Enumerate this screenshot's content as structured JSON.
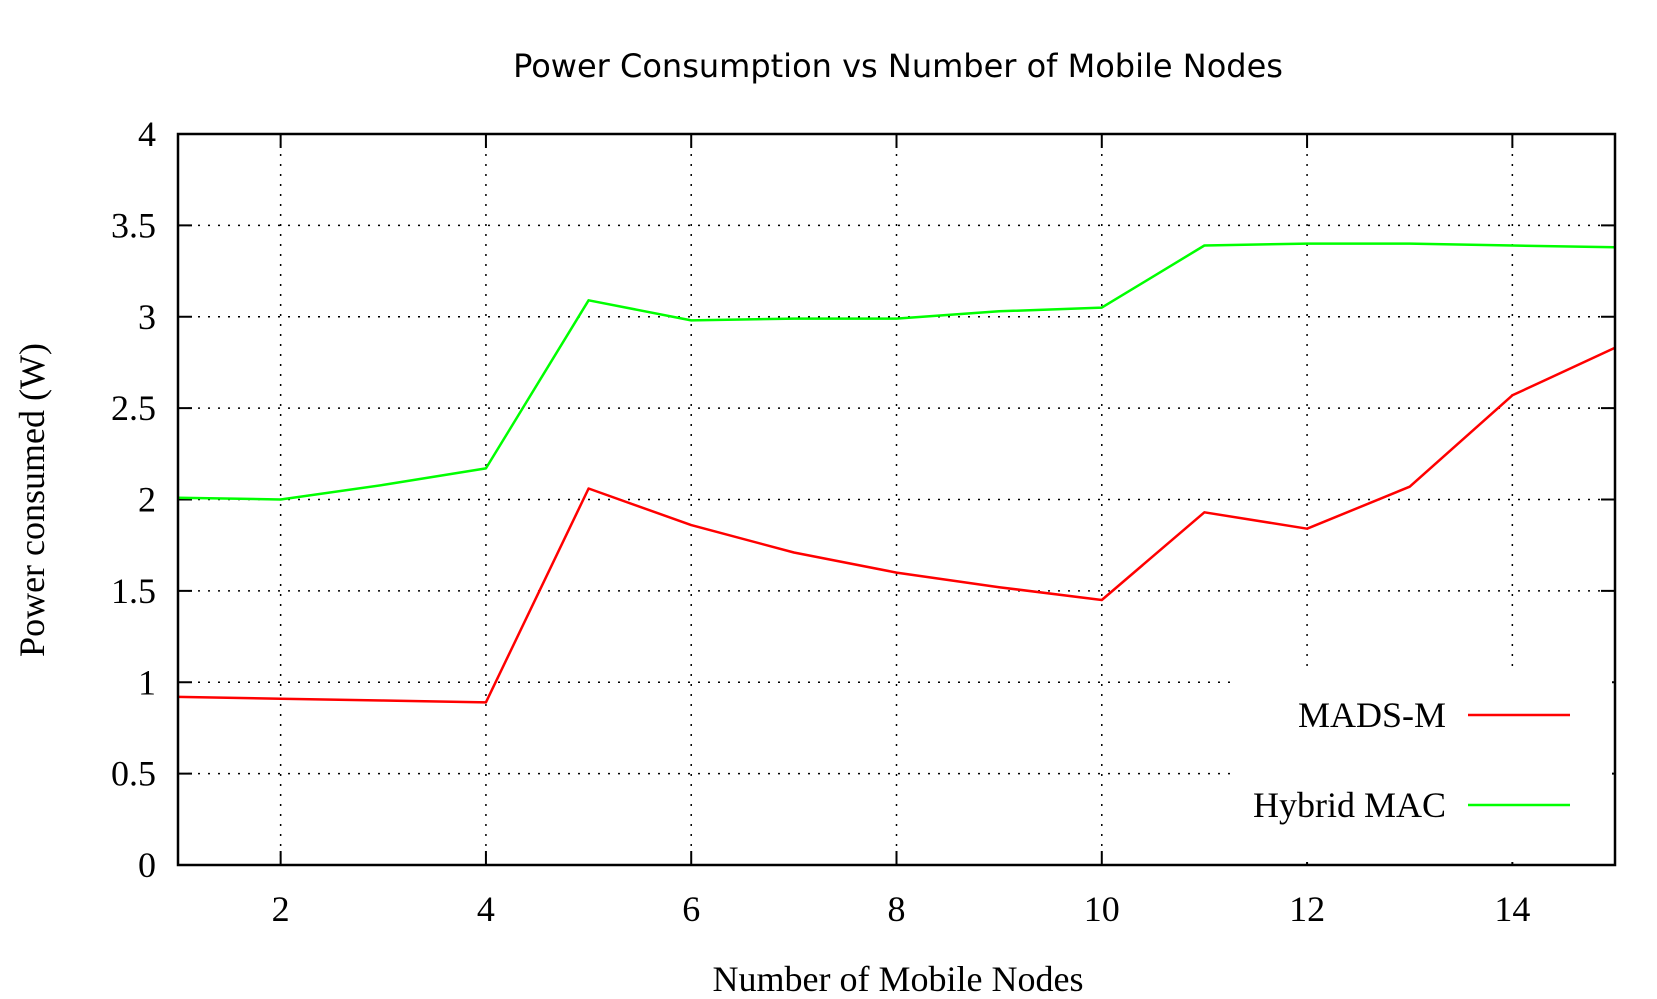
{
  "chart_data": {
    "type": "line",
    "title": "Power Consumption vs Number of Mobile Nodes",
    "xlabel": "Number of Mobile Nodes",
    "ylabel": "Power consumed (W)",
    "xlim": [
      1,
      15
    ],
    "ylim": [
      0,
      4
    ],
    "x_ticks": [
      2,
      4,
      6,
      8,
      10,
      12,
      14
    ],
    "y_ticks": [
      0,
      0.5,
      1,
      1.5,
      2,
      2.5,
      3,
      3.5,
      4
    ],
    "x_tick_labels": [
      "2",
      "4",
      "6",
      "8",
      "10",
      "12",
      "14"
    ],
    "y_tick_labels": [
      "0",
      "0.5",
      "1",
      "1.5",
      "2",
      "2.5",
      "3",
      "3.5",
      "4"
    ],
    "grid": true,
    "legend_position": "bottom-right",
    "x": [
      1,
      2,
      3,
      4,
      5,
      6,
      7,
      8,
      9,
      10,
      11,
      12,
      13,
      14,
      15
    ],
    "series": [
      {
        "name": "MADS-M",
        "color": "#ff0000",
        "values": [
          0.92,
          0.91,
          0.9,
          0.89,
          2.06,
          1.86,
          1.71,
          1.6,
          1.52,
          1.45,
          1.93,
          1.84,
          2.07,
          2.57,
          2.83
        ]
      },
      {
        "name": "Hybrid MAC",
        "color": "#00ff00",
        "values": [
          2.01,
          2.0,
          2.08,
          2.17,
          3.09,
          2.98,
          2.99,
          2.99,
          3.03,
          3.05,
          3.39,
          3.4,
          3.4,
          3.39,
          3.38
        ]
      }
    ]
  }
}
